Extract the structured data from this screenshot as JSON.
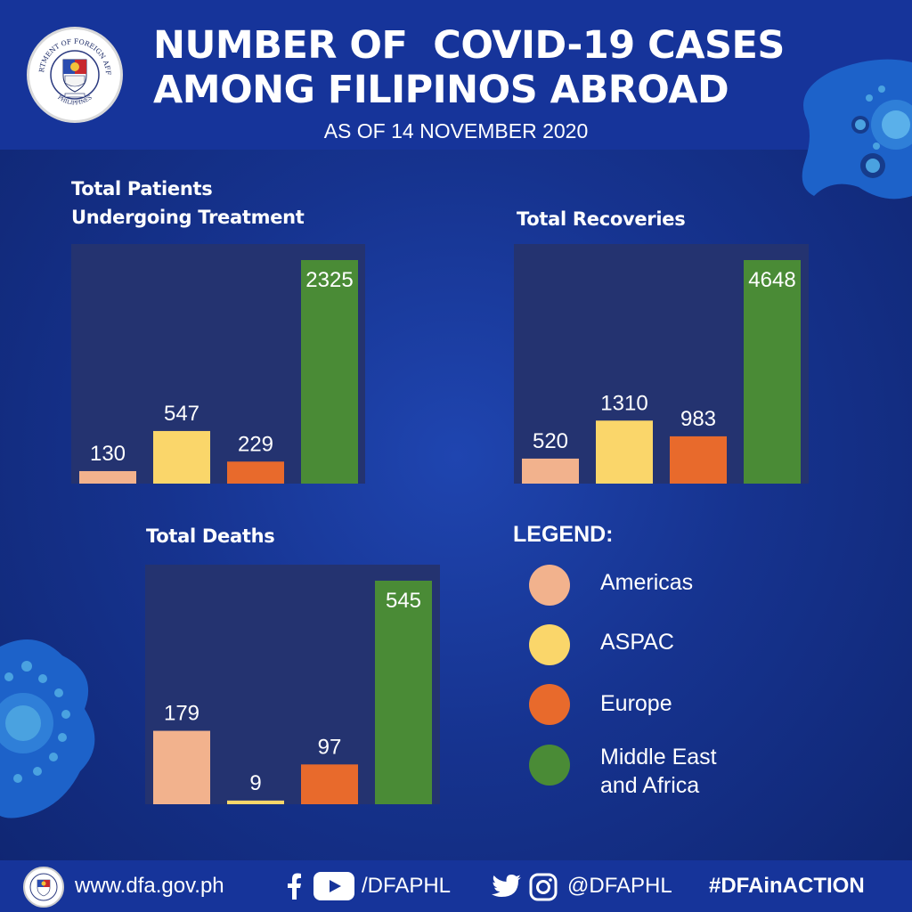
{
  "header": {
    "title_line1": "NUMBER OF  COVID-19 CASES",
    "title_line2": "AMONG FILIPINOS ABROAD",
    "subtitle": "AS OF 14 NOVEMBER 2020",
    "seal_text": "DEPARTMENT OF FOREIGN AFFAIRS",
    "seal_text_bottom": "PHILIPPINES"
  },
  "colors": {
    "Americas": "#f2b28d",
    "ASPAC": "#fad66a",
    "Europe": "#e86a2c",
    "Middle East and Africa": "#4a8b36",
    "panel": "#243370"
  },
  "chart_data": [
    {
      "type": "bar",
      "title_line1": "Total Patients",
      "title_line2": "Undergoing Treatment",
      "categories": [
        "Americas",
        "ASPAC",
        "Europe",
        "Middle East and Africa"
      ],
      "values": [
        130,
        547,
        229,
        2325
      ],
      "ylim": [
        0,
        2325
      ]
    },
    {
      "type": "bar",
      "title_line1": "",
      "title_line2": "Total Recoveries",
      "categories": [
        "Americas",
        "ASPAC",
        "Europe",
        "Middle East and Africa"
      ],
      "values": [
        520,
        1310,
        983,
        4648
      ],
      "ylim": [
        0,
        4648
      ]
    },
    {
      "type": "bar",
      "title_line1": "",
      "title_line2": "Total Deaths",
      "categories": [
        "Americas",
        "ASPAC",
        "Europe",
        "Middle East and Africa"
      ],
      "values": [
        179,
        9,
        97,
        545
      ],
      "ylim": [
        0,
        545
      ]
    }
  ],
  "legend": {
    "title": "LEGEND:",
    "items": [
      {
        "label": "Americas",
        "color": "#f2b28d"
      },
      {
        "label": "ASPAC",
        "color": "#fad66a"
      },
      {
        "label": "Europe",
        "color": "#e86a2c"
      },
      {
        "label_line1": "Middle East",
        "label_line2": "and Africa",
        "color": "#4a8b36"
      }
    ]
  },
  "footer": {
    "website": "www.dfa.gov.ph",
    "facebook_youtube_handle": "/DFAPHL",
    "twitter_instagram_handle": "@DFAPHL",
    "hashtag": "#DFAinACTION",
    "icons": [
      "facebook-icon",
      "youtube-icon",
      "twitter-icon",
      "instagram-icon"
    ]
  }
}
